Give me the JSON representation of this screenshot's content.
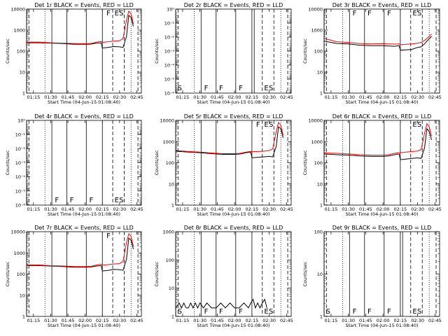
{
  "figure": {
    "x_ticks": [
      "01:15",
      "01:30",
      "01:45",
      "02:00",
      "02:15",
      "02:30",
      "02:45"
    ],
    "xlabel": "Start Time (04-Jun-15 01:08:40)",
    "ylabel": "Counts/sec",
    "log_ticks": [
      "1",
      "10",
      "100",
      "1000",
      "10000"
    ],
    "colors": {
      "events": "#000000",
      "lld": "#ff0000",
      "axes": "#000000"
    }
  },
  "chart_data": [
    {
      "title": "Det 1r BLACK = Events, RED = LLD",
      "type": "line",
      "ylim": [
        1,
        10000
      ],
      "scale": "log",
      "x": [
        "01:09",
        "01:20",
        "01:30",
        "01:40",
        "01:50",
        "02:00",
        "02:05",
        "02:10",
        "02:14",
        "02:15",
        "02:20",
        "02:25",
        "02:30",
        "02:33",
        "02:36",
        "02:38",
        "02:40",
        "02:42"
      ],
      "series": [
        {
          "name": "Events",
          "color": "#000000",
          "values": [
            250,
            250,
            240,
            230,
            210,
            210,
            215,
            240,
            250,
            140,
            150,
            165,
            160,
            150,
            500,
            5000,
            4000,
            1500
          ]
        },
        {
          "name": "LLD",
          "color": "#ff0000",
          "values": [
            270,
            270,
            250,
            240,
            230,
            225,
            230,
            270,
            290,
            260,
            280,
            300,
            310,
            400,
            3000,
            8000,
            6000,
            2000
          ]
        }
      ],
      "flags": [
        "F",
        "E",
        "S"
      ]
    },
    {
      "title": "Det 2r BLACK = Events, RED = LLD",
      "type": "line",
      "ylim": [
        1,
        1e-06
      ],
      "scale": "log",
      "y_ticks": [
        "10⁰",
        "10⁻¹",
        "10⁻²",
        "10⁻³",
        "10⁻⁴",
        "10⁻⁵",
        "10⁻⁶"
      ],
      "x": [],
      "series": [],
      "flags": [
        "S",
        "F",
        "F",
        "F",
        "E",
        "S"
      ]
    },
    {
      "title": "Det 3r BLACK = Events, RED = LLD",
      "type": "line",
      "ylim": [
        1,
        10000
      ],
      "scale": "log",
      "x": [
        "01:09",
        "01:20",
        "01:30",
        "01:40",
        "01:50",
        "02:00",
        "02:05",
        "02:10",
        "02:14",
        "02:15",
        "02:20",
        "02:25",
        "02:30",
        "02:33",
        "02:36",
        "02:38",
        "02:40",
        "02:42"
      ],
      "series": [
        {
          "name": "Events",
          "color": "#000000",
          "values": [
            300,
            230,
            220,
            190,
            180,
            180,
            175,
            170,
            180,
            110,
            115,
            120,
            150,
            160,
            220,
            300,
            380,
            500
          ]
        },
        {
          "name": "LLD",
          "color": "#ff0000",
          "values": [
            400,
            280,
            260,
            230,
            220,
            225,
            220,
            215,
            220,
            200,
            210,
            220,
            240,
            260,
            320,
            400,
            500,
            650
          ]
        }
      ],
      "flags": [
        "F",
        "F",
        "F",
        "E",
        "S"
      ]
    },
    {
      "title": "Det 4r BLACK = Events, RED = LLD",
      "type": "line",
      "ylim": [
        1,
        1e-06
      ],
      "scale": "log",
      "y_ticks": [
        "10⁰",
        "10⁻¹",
        "10⁻²",
        "10⁻³",
        "10⁻⁴",
        "10⁻⁵",
        "10⁻⁶"
      ],
      "x": [],
      "series": [],
      "flags": [
        "F",
        "F",
        "F",
        "E",
        "S"
      ]
    },
    {
      "title": "Det 5r BLACK = Events, RED = LLD",
      "type": "line",
      "ylim": [
        1,
        10000
      ],
      "scale": "log",
      "x": [
        "01:09",
        "01:20",
        "01:30",
        "01:40",
        "01:50",
        "02:00",
        "02:05",
        "02:10",
        "02:14",
        "02:15",
        "02:20",
        "02:25",
        "02:30",
        "02:33",
        "02:36",
        "02:38",
        "02:40",
        "02:42"
      ],
      "series": [
        {
          "name": "Events",
          "color": "#000000",
          "values": [
            350,
            320,
            300,
            270,
            250,
            250,
            260,
            300,
            320,
            170,
            180,
            190,
            200,
            190,
            600,
            5000,
            4000,
            1500
          ]
        },
        {
          "name": "LLD",
          "color": "#ff0000",
          "values": [
            380,
            340,
            320,
            290,
            270,
            270,
            280,
            320,
            340,
            330,
            340,
            350,
            380,
            450,
            3000,
            8000,
            6000,
            2000
          ]
        }
      ],
      "flags": [
        "F",
        "E",
        "S"
      ]
    },
    {
      "title": "Det 6r BLACK = Events, RED = LLD",
      "type": "line",
      "ylim": [
        1,
        10000
      ],
      "scale": "log",
      "x": [
        "01:09",
        "01:20",
        "01:30",
        "01:40",
        "01:50",
        "02:00",
        "02:05",
        "02:10",
        "02:14",
        "02:15",
        "02:20",
        "02:25",
        "02:30",
        "02:33",
        "02:36",
        "02:38",
        "02:40",
        "02:42"
      ],
      "series": [
        {
          "name": "Events",
          "color": "#000000",
          "values": [
            260,
            240,
            230,
            210,
            200,
            200,
            210,
            240,
            260,
            140,
            150,
            160,
            170,
            160,
            500,
            4000,
            3000,
            1200
          ]
        },
        {
          "name": "LLD",
          "color": "#ff0000",
          "values": [
            290,
            280,
            260,
            240,
            230,
            230,
            240,
            280,
            300,
            300,
            320,
            340,
            360,
            420,
            2500,
            7000,
            5000,
            1800
          ]
        }
      ],
      "flags": [
        "E",
        "S"
      ]
    },
    {
      "title": "Det 7r BLACK = Events, RED = LLD",
      "type": "line",
      "ylim": [
        1,
        10000
      ],
      "scale": "log",
      "x": [
        "01:09",
        "01:20",
        "01:30",
        "01:40",
        "01:50",
        "02:00",
        "02:05",
        "02:10",
        "02:14",
        "02:15",
        "02:20",
        "02:25",
        "02:30",
        "02:33",
        "02:36",
        "02:38",
        "02:40",
        "02:42"
      ],
      "series": [
        {
          "name": "Events",
          "color": "#000000",
          "values": [
            250,
            250,
            240,
            230,
            210,
            210,
            215,
            240,
            250,
            140,
            150,
            165,
            160,
            150,
            500,
            5000,
            4000,
            1500
          ]
        },
        {
          "name": "LLD",
          "color": "#ff0000",
          "values": [
            280,
            270,
            250,
            240,
            230,
            225,
            230,
            270,
            290,
            260,
            280,
            300,
            310,
            400,
            3000,
            8000,
            6000,
            2000
          ]
        }
      ],
      "flags": [
        "F"
      ]
    },
    {
      "title": "Det 8r BLACK = Events, RED = LLD",
      "type": "line",
      "ylim": [
        1,
        1000
      ],
      "scale": "log",
      "x": [
        "01:09",
        "01:12",
        "01:14",
        "01:16",
        "01:18",
        "01:20",
        "01:22",
        "01:24",
        "01:26",
        "01:28",
        "01:30",
        "01:33",
        "01:36",
        "01:40",
        "01:44",
        "01:48",
        "01:52",
        "01:56",
        "02:00",
        "02:04",
        "02:08",
        "02:12",
        "02:14",
        "02:16",
        "02:18",
        "02:20",
        "02:22",
        "02:24",
        "02:26",
        "02:28"
      ],
      "series": [
        {
          "name": "Events",
          "color": "#000000",
          "values": [
            2,
            3,
            2,
            3,
            2,
            2,
            3,
            2,
            3,
            2,
            3,
            2,
            3,
            2,
            2,
            3,
            2,
            3,
            2,
            2,
            3,
            2,
            3,
            4,
            2,
            3,
            2,
            3,
            4,
            2
          ]
        }
      ],
      "flags": [
        "S",
        "F",
        "F",
        "F",
        "E",
        "S"
      ]
    },
    {
      "title": "Det 9r BLACK = Events, RED = LLD",
      "type": "line",
      "ylim": [
        1,
        100
      ],
      "scale": "log",
      "x": [],
      "series": [],
      "flags": [
        "S",
        "F",
        "F",
        "F",
        "E",
        "S"
      ]
    }
  ]
}
